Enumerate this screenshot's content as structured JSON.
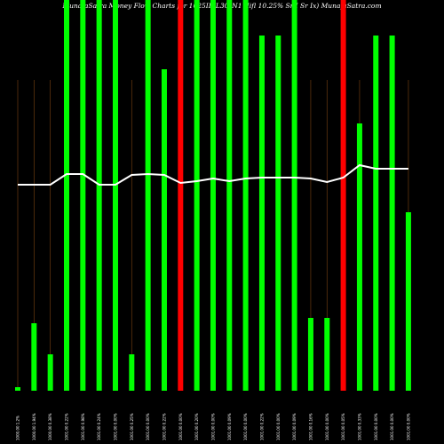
{
  "chart_data": {
    "type": "bar",
    "title": "MunafaSatra  Money Flow  Charts for 1025IIFL30_N1  (Iifl 10.25% Sr I Sr Ix) MunafaSatra.com",
    "categories": [
      "1000.00 1.2%",
      "1000.00 1.94%",
      "1000.00 0.38%",
      "1001.00 0.22%",
      "1001.00 0.98%",
      "1001.00 0.24%",
      "1001.00 0.00%",
      "1001.00 0.25%",
      "1001.00 0.00%",
      "1001.00 0.22%",
      "1001.00 0.00%",
      "1001.00 0.20%",
      "1001.00 0.00%",
      "1001.00 0.09%",
      "1001.00 0.00%",
      "1001.00 0.22%",
      "1001.00 0.00%",
      "1001.00 0.09%",
      "1001.00 0.16%",
      "1001.00 0.00%",
      "1001.00 0.05%",
      "1001.00 0.33%",
      "1001.00 0.00%",
      "1001.00 0.00%",
      "1001.00 0.00%"
    ],
    "values": [
      4,
      76,
      41,
      440,
      440,
      440,
      440,
      41,
      440,
      362,
      440,
      440,
      440,
      440,
      440,
      400,
      400,
      440,
      82,
      82,
      440,
      301,
      400,
      400,
      201
    ],
    "colors": [
      "#00ff00",
      "#00ff00",
      "#00ff00",
      "#00ff00",
      "#00ff00",
      "#00ff00",
      "#00ff00",
      "#00ff00",
      "#00ff00",
      "#00ff00",
      "#ff0000",
      "#00ff00",
      "#00ff00",
      "#00ff00",
      "#00ff00",
      "#00ff00",
      "#00ff00",
      "#00ff00",
      "#00ff00",
      "#00ff00",
      "#ff0000",
      "#00ff00",
      "#00ff00",
      "#00ff00",
      "#00ff00"
    ],
    "line": {
      "color": "#ffffff",
      "values": [
        232,
        232,
        232,
        244,
        244,
        232,
        232,
        243,
        244,
        243,
        234,
        236,
        239,
        236,
        239,
        240,
        240,
        240,
        239,
        235,
        240,
        254,
        250,
        250,
        250
      ]
    },
    "ylim": [
      0,
      440
    ]
  }
}
